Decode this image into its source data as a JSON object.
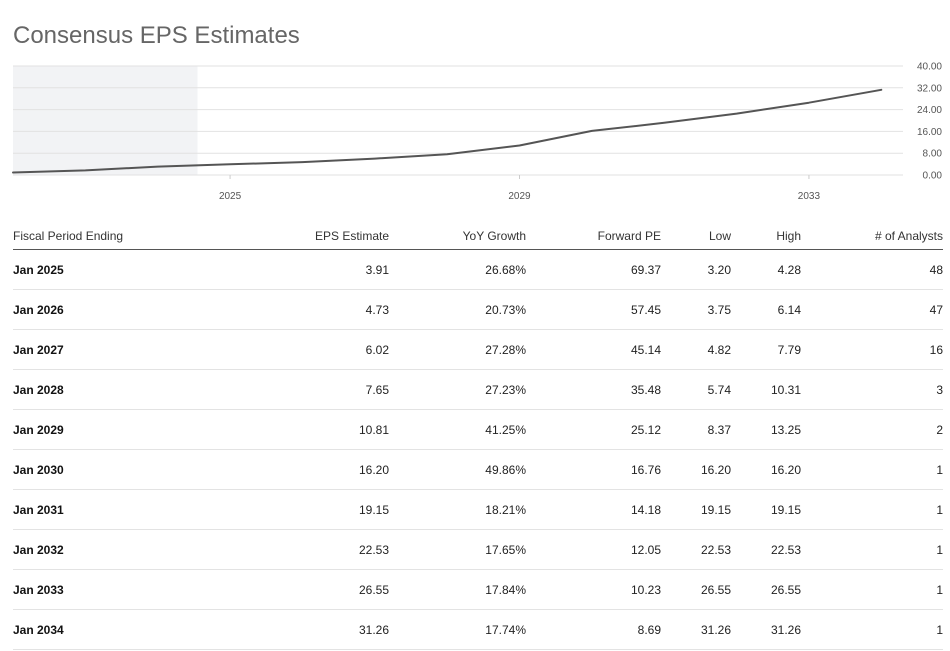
{
  "page": {
    "title": "Consensus EPS Estimates"
  },
  "chart_data": {
    "type": "line",
    "title": "",
    "x_tick_labels": [
      "2025",
      "2029",
      "2033"
    ],
    "y_tick_labels": [
      "0.00",
      "8.00",
      "16.00",
      "24.00",
      "32.00",
      "40.00"
    ],
    "ylim": [
      0,
      40
    ],
    "xlim": [
      2022.0,
      2034.3
    ],
    "shaded_region": {
      "from": 2022.0,
      "to": 2024.55
    },
    "grid": true,
    "color": "#555555",
    "series": [
      {
        "x": [
          2022.0,
          2023.0,
          2024.0,
          2025.0,
          2026.0,
          2027.0,
          2028.0,
          2029.0,
          2030.0,
          2031.0,
          2032.0,
          2033.0,
          2034.0
        ],
        "values": [
          0.9,
          1.7,
          3.1,
          3.91,
          4.73,
          6.02,
          7.65,
          10.81,
          16.2,
          19.15,
          22.53,
          26.55,
          31.26
        ]
      }
    ]
  },
  "table": {
    "columns": [
      "Fiscal Period Ending",
      "EPS Estimate",
      "YoY Growth",
      "Forward PE",
      "Low",
      "High",
      "# of Analysts"
    ],
    "rows": [
      [
        "Jan 2025",
        "3.91",
        "26.68%",
        "69.37",
        "3.20",
        "4.28",
        "48"
      ],
      [
        "Jan 2026",
        "4.73",
        "20.73%",
        "57.45",
        "3.75",
        "6.14",
        "47"
      ],
      [
        "Jan 2027",
        "6.02",
        "27.28%",
        "45.14",
        "4.82",
        "7.79",
        "16"
      ],
      [
        "Jan 2028",
        "7.65",
        "27.23%",
        "35.48",
        "5.74",
        "10.31",
        "3"
      ],
      [
        "Jan 2029",
        "10.81",
        "41.25%",
        "25.12",
        "8.37",
        "13.25",
        "2"
      ],
      [
        "Jan 2030",
        "16.20",
        "49.86%",
        "16.76",
        "16.20",
        "16.20",
        "1"
      ],
      [
        "Jan 2031",
        "19.15",
        "18.21%",
        "14.18",
        "19.15",
        "19.15",
        "1"
      ],
      [
        "Jan 2032",
        "22.53",
        "17.65%",
        "12.05",
        "22.53",
        "22.53",
        "1"
      ],
      [
        "Jan 2033",
        "26.55",
        "17.84%",
        "10.23",
        "26.55",
        "26.55",
        "1"
      ],
      [
        "Jan 2034",
        "31.26",
        "17.74%",
        "8.69",
        "31.26",
        "31.26",
        "1"
      ]
    ]
  }
}
